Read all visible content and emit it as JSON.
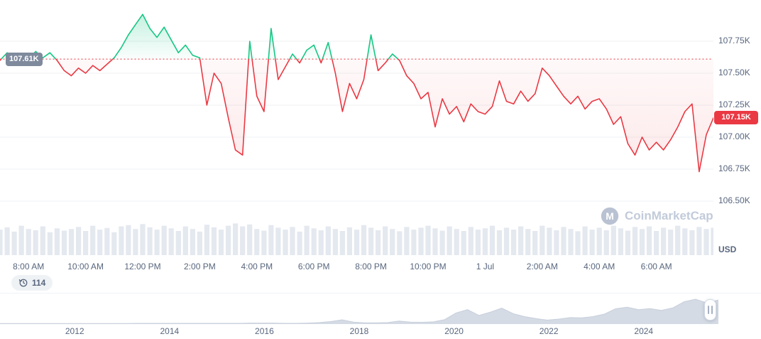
{
  "axis": {
    "currency_label": "USD"
  },
  "baseline": {
    "value": 107.61,
    "label": "107.61K"
  },
  "current_price": {
    "value": 107.15,
    "label": "107.15K"
  },
  "history_badge": {
    "count": "114"
  },
  "watermark": {
    "text": "CoinMarketCap",
    "logo_letter": "M"
  },
  "colors": {
    "green": "#16c784",
    "red": "#ea3943",
    "baseline_badge_bg": "#7f8a9d",
    "axis_text": "#58667e",
    "grid": "#eff2f5",
    "volume_bar": "#dfe4ec",
    "mini_area": "#d5dbe4",
    "mini_stroke": "#c7cfdc"
  },
  "chart_data": [
    {
      "type": "line",
      "title": "Price (24h) vs baseline 107.61K",
      "unit": "USD",
      "ylim": [
        106.072,
        108.072
      ],
      "baseline_value": 107.61,
      "grid": true,
      "y_ticks": [
        {
          "value": 107.75,
          "label": "107.75K"
        },
        {
          "value": 107.5,
          "label": "107.50K"
        },
        {
          "value": 107.25,
          "label": "107.25K"
        },
        {
          "value": 107.0,
          "label": "107.00K"
        },
        {
          "value": 106.75,
          "label": "106.75K"
        },
        {
          "value": 106.5,
          "label": "106.50K"
        }
      ],
      "x_ticks": [
        {
          "i": 4,
          "label": "8:00 AM"
        },
        {
          "i": 12,
          "label": "10:00 AM"
        },
        {
          "i": 20,
          "label": "12:00 PM"
        },
        {
          "i": 28,
          "label": "2:00 PM"
        },
        {
          "i": 36,
          "label": "4:00 PM"
        },
        {
          "i": 44,
          "label": "6:00 PM"
        },
        {
          "i": 52,
          "label": "8:00 PM"
        },
        {
          "i": 60,
          "label": "10:00 PM"
        },
        {
          "i": 68,
          "label": "1 Jul"
        },
        {
          "i": 76,
          "label": "2:00 AM"
        },
        {
          "i": 84,
          "label": "4:00 AM"
        },
        {
          "i": 92,
          "label": "6:00 AM"
        }
      ],
      "prices": [
        107.6,
        107.66,
        107.58,
        107.64,
        107.61,
        107.67,
        107.62,
        107.66,
        107.6,
        107.52,
        107.48,
        107.54,
        107.5,
        107.56,
        107.52,
        107.57,
        107.62,
        107.7,
        107.8,
        107.88,
        107.96,
        107.85,
        107.78,
        107.86,
        107.76,
        107.66,
        107.72,
        107.64,
        107.62,
        107.25,
        107.5,
        107.42,
        107.15,
        106.9,
        106.86,
        107.75,
        107.32,
        107.2,
        107.85,
        107.45,
        107.55,
        107.65,
        107.58,
        107.68,
        107.72,
        107.58,
        107.74,
        107.5,
        107.2,
        107.42,
        107.3,
        107.45,
        107.8,
        107.52,
        107.58,
        107.65,
        107.6,
        107.48,
        107.42,
        107.3,
        107.35,
        107.08,
        107.3,
        107.18,
        107.24,
        107.12,
        107.26,
        107.2,
        107.18,
        107.24,
        107.44,
        107.28,
        107.26,
        107.36,
        107.28,
        107.34,
        107.54,
        107.48,
        107.4,
        107.32,
        107.26,
        107.32,
        107.22,
        107.28,
        107.3,
        107.22,
        107.1,
        107.16,
        106.95,
        106.86,
        107.0,
        106.9,
        106.96,
        106.9,
        106.98,
        107.08,
        107.2,
        107.26,
        106.73,
        107.02,
        107.15
      ],
      "volume": [
        0.78,
        0.85,
        0.72,
        0.9,
        0.8,
        0.76,
        0.88,
        0.7,
        0.82,
        0.75,
        0.8,
        0.86,
        0.74,
        0.9,
        0.78,
        0.83,
        0.7,
        0.88,
        0.92,
        0.8,
        0.95,
        0.85,
        0.78,
        0.9,
        0.82,
        0.74,
        0.88,
        0.8,
        0.72,
        0.93,
        0.85,
        0.78,
        0.9,
        0.97,
        0.88,
        0.94,
        0.8,
        0.75,
        0.92,
        0.84,
        0.78,
        0.86,
        0.72,
        0.9,
        0.82,
        0.76,
        0.88,
        0.8,
        0.74,
        0.85,
        0.78,
        0.92,
        0.84,
        0.76,
        0.88,
        0.8,
        0.73,
        0.86,
        0.78,
        0.84,
        0.9,
        0.82,
        0.75,
        0.88,
        0.8,
        0.74,
        0.86,
        0.78,
        0.82,
        0.9,
        0.76,
        0.84,
        0.78,
        0.88,
        0.8,
        0.74,
        0.9,
        0.84,
        0.76,
        0.86,
        0.8,
        0.73,
        0.88,
        0.78,
        0.84,
        0.76,
        0.9,
        0.82,
        0.75,
        0.86,
        0.8,
        0.88,
        0.74,
        0.84,
        0.78,
        0.9,
        0.82,
        0.76,
        0.86,
        0.8,
        0.84
      ]
    },
    {
      "type": "area",
      "title": "All-time price history (range brush)",
      "years": [
        {
          "f": 0.104,
          "label": "2012"
        },
        {
          "f": 0.236,
          "label": "2014"
        },
        {
          "f": 0.368,
          "label": "2016"
        },
        {
          "f": 0.5,
          "label": "2018"
        },
        {
          "f": 0.632,
          "label": "2020"
        },
        {
          "f": 0.764,
          "label": "2022"
        },
        {
          "f": 0.896,
          "label": "2024"
        }
      ],
      "values": [
        0.02,
        0.02,
        0.02,
        0.02,
        0.02,
        0.02,
        0.02,
        0.02,
        0.02,
        0.02,
        0.02,
        0.02,
        0.03,
        0.03,
        0.03,
        0.03,
        0.03,
        0.03,
        0.03,
        0.03,
        0.03,
        0.03,
        0.04,
        0.04,
        0.04,
        0.03,
        0.03,
        0.04,
        0.06,
        0.1,
        0.17,
        0.08,
        0.05,
        0.05,
        0.06,
        0.12,
        0.08,
        0.07,
        0.09,
        0.18,
        0.45,
        0.58,
        0.35,
        0.48,
        0.64,
        0.42,
        0.3,
        0.22,
        0.16,
        0.2,
        0.26,
        0.25,
        0.3,
        0.4,
        0.62,
        0.68,
        0.58,
        0.62,
        0.55,
        0.65,
        0.9,
        1.0,
        0.85,
        0.97
      ]
    }
  ]
}
